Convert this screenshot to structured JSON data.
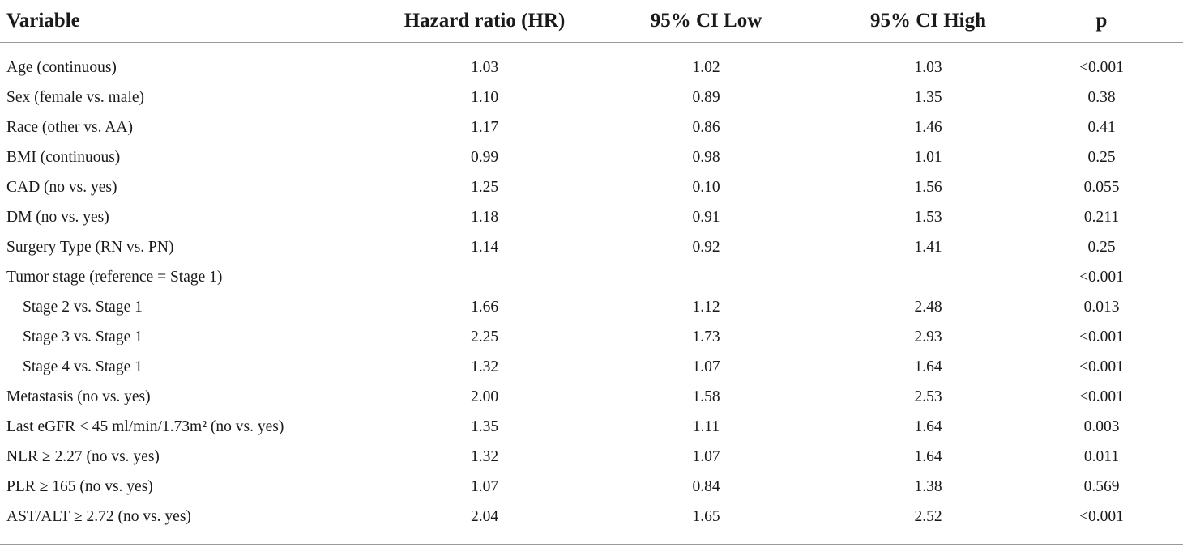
{
  "table": {
    "headers": [
      "Variable",
      "Hazard ratio (HR)",
      "95% CI Low",
      "95% CI High",
      "p"
    ],
    "rows": [
      {
        "variable": "Age (continuous)",
        "hr": "1.03",
        "low": "1.02",
        "high": "1.03",
        "p": "<0.001"
      },
      {
        "variable": "Sex (female vs. male)",
        "hr": "1.10",
        "low": "0.89",
        "high": "1.35",
        "p": "0.38"
      },
      {
        "variable": "Race (other vs. AA)",
        "hr": "1.17",
        "low": "0.86",
        "high": "1.46",
        "p": "0.41"
      },
      {
        "variable": "BMI (continuous)",
        "hr": "0.99",
        "low": "0.98",
        "high": "1.01",
        "p": "0.25"
      },
      {
        "variable": "CAD (no vs. yes)",
        "hr": "1.25",
        "low": "0.10",
        "high": "1.56",
        "p": "0.055"
      },
      {
        "variable": "DM (no vs. yes)",
        "hr": "1.18",
        "low": "0.91",
        "high": "1.53",
        "p": "0.211"
      },
      {
        "variable": "Surgery Type (RN vs. PN)",
        "hr": "1.14",
        "low": "0.92",
        "high": "1.41",
        "p": "0.25"
      },
      {
        "variable": "Tumor stage (reference = Stage 1)",
        "hr": "",
        "low": "",
        "high": "",
        "p": "<0.001"
      },
      {
        "variable": "Stage 2 vs. Stage 1",
        "hr": "1.66",
        "low": "1.12",
        "high": "2.48",
        "p": "0.013",
        "indent": true
      },
      {
        "variable": "Stage 3 vs. Stage 1",
        "hr": "2.25",
        "low": "1.73",
        "high": "2.93",
        "p": "<0.001",
        "indent": true
      },
      {
        "variable": "Stage 4 vs. Stage 1",
        "hr": "1.32",
        "low": "1.07",
        "high": "1.64",
        "p": "<0.001",
        "indent": true
      },
      {
        "variable": "Metastasis (no vs. yes)",
        "hr": "2.00",
        "low": "1.58",
        "high": "2.53",
        "p": "<0.001"
      },
      {
        "variable": "Last eGFR < 45 ml/min/1.73m² (no vs. yes)",
        "hr": "1.35",
        "low": "1.11",
        "high": "1.64",
        "p": "0.003"
      },
      {
        "variable": "NLR ≥ 2.27 (no vs. yes)",
        "hr": "1.32",
        "low": "1.07",
        "high": "1.64",
        "p": "0.011"
      },
      {
        "variable": "PLR ≥ 165 (no vs. yes)",
        "hr": "1.07",
        "low": "0.84",
        "high": "1.38",
        "p": "0.569"
      },
      {
        "variable": "AST/ALT ≥ 2.72 (no vs. yes)",
        "hr": "2.04",
        "low": "1.65",
        "high": "2.52",
        "p": "<0.001"
      }
    ]
  }
}
